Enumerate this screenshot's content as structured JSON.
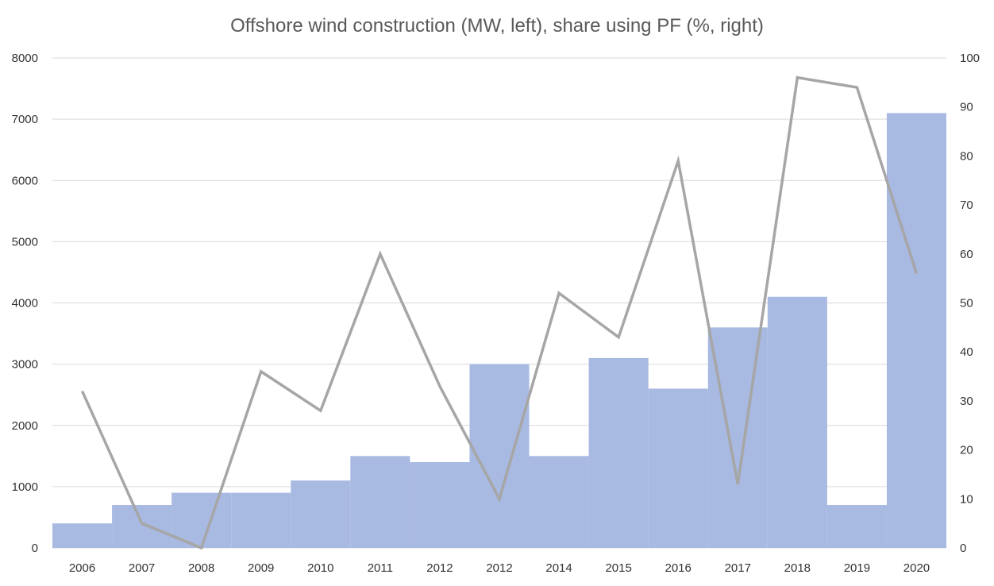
{
  "chart_data": {
    "type": "bar+line",
    "title": "Offshore wind construction (MW, left), share using PF (%, right)",
    "categories": [
      "2006",
      "2007",
      "2008",
      "2009",
      "2010",
      "2011",
      "2012",
      "2012",
      "2014",
      "2015",
      "2016",
      "2017",
      "2018",
      "2019",
      "2020"
    ],
    "series": [
      {
        "type": "bar",
        "axis": "left",
        "color": "#a8b9e2",
        "values": [
          400,
          700,
          900,
          900,
          1100,
          1500,
          1400,
          3000,
          1500,
          3100,
          2600,
          3600,
          4100,
          700,
          7100
        ]
      },
      {
        "type": "line",
        "axis": "right",
        "color": "#a6a6a6",
        "values": [
          32,
          5,
          0,
          36,
          28,
          60,
          33,
          10,
          52,
          43,
          79,
          13,
          96,
          94,
          56
        ]
      }
    ],
    "left_axis": {
      "min": 0,
      "max": 8000,
      "ticks": [
        "0",
        "1000",
        "2000",
        "3000",
        "4000",
        "5000",
        "6000",
        "7000",
        "8000"
      ]
    },
    "right_axis": {
      "min": 0,
      "max": 100,
      "ticks": [
        "0",
        "10",
        "20",
        "30",
        "40",
        "50",
        "60",
        "70",
        "80",
        "90",
        "100"
      ]
    },
    "grid": true,
    "legend": "none"
  }
}
